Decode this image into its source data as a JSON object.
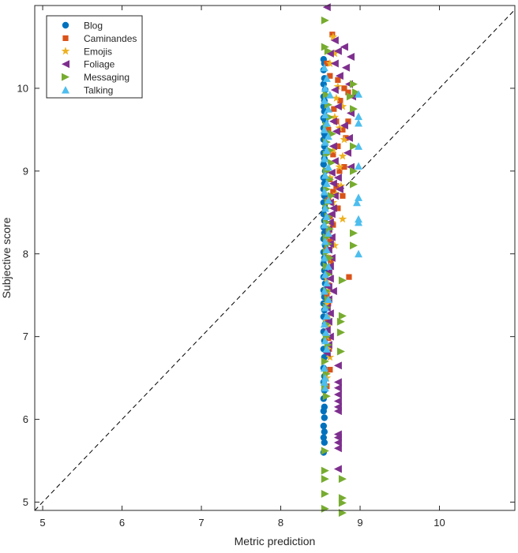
{
  "chart_data": {
    "type": "scatter",
    "xlabel": "Metric prediction",
    "ylabel": "Subjective score",
    "xlim": [
      4.9,
      10.95
    ],
    "ylim": [
      4.9,
      11.0
    ],
    "x_ticks": [
      5,
      6,
      7,
      8,
      9,
      10
    ],
    "y_ticks": [
      5,
      6,
      7,
      8,
      9,
      10
    ],
    "grid": false,
    "legend_position": "top-left",
    "reference_line": {
      "style": "dashed",
      "color": "#000000",
      "from": [
        4.9,
        4.9
      ],
      "to": [
        10.95,
        10.95
      ]
    },
    "series": [
      {
        "name": "Blog",
        "marker": "circle",
        "color": "#0072BD",
        "points": [
          [
            8.54,
            10.35
          ],
          [
            8.55,
            10.3
          ],
          [
            8.54,
            10.22
          ],
          [
            8.55,
            10.12
          ],
          [
            8.54,
            10.05
          ],
          [
            8.56,
            9.98
          ],
          [
            8.54,
            9.9
          ],
          [
            8.55,
            9.85
          ],
          [
            8.54,
            9.78
          ],
          [
            8.55,
            9.72
          ],
          [
            8.54,
            9.64
          ],
          [
            8.56,
            9.6
          ],
          [
            8.54,
            9.52
          ],
          [
            8.55,
            9.45
          ],
          [
            8.54,
            9.38
          ],
          [
            8.55,
            9.3
          ],
          [
            8.54,
            9.22
          ],
          [
            8.55,
            9.15
          ],
          [
            8.54,
            9.08
          ],
          [
            8.56,
            9.0
          ],
          [
            8.54,
            8.92
          ],
          [
            8.55,
            8.85
          ],
          [
            8.54,
            8.78
          ],
          [
            8.55,
            8.7
          ],
          [
            8.54,
            8.62
          ],
          [
            8.56,
            8.55
          ],
          [
            8.54,
            8.48
          ],
          [
            8.55,
            8.4
          ],
          [
            8.54,
            8.32
          ],
          [
            8.55,
            8.25
          ],
          [
            8.54,
            8.18
          ],
          [
            8.56,
            8.1
          ],
          [
            8.54,
            8.02
          ],
          [
            8.55,
            7.95
          ],
          [
            8.54,
            7.88
          ],
          [
            8.55,
            7.8
          ],
          [
            8.54,
            7.72
          ],
          [
            8.56,
            7.64
          ],
          [
            8.54,
            7.56
          ],
          [
            8.55,
            7.48
          ],
          [
            8.54,
            7.4
          ],
          [
            8.55,
            7.32
          ],
          [
            8.54,
            7.24
          ],
          [
            8.56,
            7.15
          ],
          [
            8.54,
            7.06
          ],
          [
            8.55,
            6.95
          ],
          [
            8.54,
            6.85
          ],
          [
            8.55,
            6.75
          ],
          [
            8.54,
            6.62
          ],
          [
            8.55,
            6.52
          ],
          [
            8.54,
            6.45
          ],
          [
            8.55,
            6.35
          ],
          [
            8.54,
            6.25
          ],
          [
            8.55,
            6.15
          ],
          [
            8.54,
            6.1
          ],
          [
            8.55,
            6.02
          ],
          [
            8.54,
            5.92
          ],
          [
            8.55,
            5.85
          ],
          [
            8.54,
            5.78
          ],
          [
            8.55,
            5.72
          ],
          [
            8.54,
            5.6
          ]
        ]
      },
      {
        "name": "Caminandes",
        "marker": "square",
        "color": "#D95319",
        "points": [
          [
            8.65,
            10.65
          ],
          [
            8.58,
            10.3
          ],
          [
            8.62,
            10.15
          ],
          [
            8.72,
            10.1
          ],
          [
            8.8,
            10.0
          ],
          [
            8.85,
            9.95
          ],
          [
            8.75,
            9.85
          ],
          [
            8.67,
            9.75
          ],
          [
            8.7,
            9.6
          ],
          [
            8.85,
            9.6
          ],
          [
            8.6,
            9.5
          ],
          [
            8.78,
            9.5
          ],
          [
            8.82,
            9.4
          ],
          [
            8.72,
            9.3
          ],
          [
            8.66,
            9.2
          ],
          [
            8.8,
            9.05
          ],
          [
            8.74,
            9.0
          ],
          [
            8.62,
            8.9
          ],
          [
            8.7,
            8.82
          ],
          [
            8.66,
            8.75
          ],
          [
            8.78,
            8.7
          ],
          [
            8.6,
            8.65
          ],
          [
            8.72,
            8.55
          ],
          [
            8.62,
            8.45
          ],
          [
            8.66,
            8.35
          ],
          [
            8.6,
            8.25
          ],
          [
            8.62,
            8.15
          ],
          [
            8.58,
            8.05
          ],
          [
            8.6,
            7.95
          ],
          [
            8.63,
            7.9
          ],
          [
            8.86,
            7.72
          ],
          [
            8.6,
            7.62
          ],
          [
            8.58,
            7.5
          ],
          [
            8.6,
            7.4
          ],
          [
            8.59,
            7.2
          ],
          [
            8.6,
            6.98
          ],
          [
            8.61,
            6.85
          ],
          [
            8.62,
            6.6
          ],
          [
            8.58,
            6.4
          ]
        ]
      },
      {
        "name": "Emojis",
        "marker": "star",
        "color": "#EDB120",
        "points": [
          [
            8.66,
            10.62
          ],
          [
            8.68,
            10.42
          ],
          [
            8.62,
            10.3
          ],
          [
            8.72,
            10.02
          ],
          [
            8.7,
            9.88
          ],
          [
            8.78,
            9.78
          ],
          [
            8.68,
            9.65
          ],
          [
            8.74,
            9.52
          ],
          [
            8.8,
            9.38
          ],
          [
            8.66,
            9.25
          ],
          [
            8.78,
            9.18
          ],
          [
            8.74,
            9.05
          ],
          [
            8.62,
            8.92
          ],
          [
            8.76,
            8.82
          ],
          [
            8.7,
            8.72
          ],
          [
            8.66,
            8.62
          ],
          [
            8.78,
            8.42
          ],
          [
            8.64,
            8.38
          ],
          [
            8.6,
            8.3
          ],
          [
            8.68,
            8.1
          ],
          [
            8.6,
            7.95
          ],
          [
            8.62,
            7.85
          ],
          [
            8.58,
            7.7
          ],
          [
            8.6,
            7.55
          ],
          [
            8.58,
            7.4
          ],
          [
            8.6,
            7.25
          ],
          [
            8.59,
            7.12
          ],
          [
            8.58,
            7.0
          ],
          [
            8.6,
            6.85
          ],
          [
            8.62,
            6.75
          ],
          [
            8.58,
            6.5
          ]
        ]
      },
      {
        "name": "Foliage",
        "marker": "triangle-left",
        "color": "#7E2F8E",
        "points": [
          [
            8.58,
            10.98
          ],
          [
            8.68,
            10.58
          ],
          [
            8.8,
            10.5
          ],
          [
            8.72,
            10.45
          ],
          [
            8.62,
            10.42
          ],
          [
            8.88,
            10.38
          ],
          [
            8.68,
            10.3
          ],
          [
            8.82,
            10.25
          ],
          [
            8.74,
            10.15
          ],
          [
            8.86,
            10.05
          ],
          [
            8.68,
            9.98
          ],
          [
            8.9,
            9.9
          ],
          [
            8.72,
            9.78
          ],
          [
            8.88,
            9.7
          ],
          [
            8.66,
            9.6
          ],
          [
            8.8,
            9.55
          ],
          [
            8.7,
            9.48
          ],
          [
            8.86,
            9.4
          ],
          [
            8.66,
            9.3
          ],
          [
            8.84,
            9.22
          ],
          [
            8.68,
            9.12
          ],
          [
            8.88,
            9.05
          ],
          [
            8.64,
            8.98
          ],
          [
            8.72,
            8.92
          ],
          [
            8.66,
            8.85
          ],
          [
            8.74,
            8.78
          ],
          [
            8.68,
            8.7
          ],
          [
            8.62,
            8.62
          ],
          [
            8.66,
            8.55
          ],
          [
            8.64,
            8.48
          ],
          [
            8.62,
            8.38
          ],
          [
            8.6,
            8.3
          ],
          [
            8.64,
            8.2
          ],
          [
            8.62,
            8.12
          ],
          [
            8.6,
            8.05
          ],
          [
            8.64,
            7.95
          ],
          [
            8.62,
            7.85
          ],
          [
            8.6,
            7.78
          ],
          [
            8.62,
            7.7
          ],
          [
            8.6,
            7.6
          ],
          [
            8.66,
            7.55
          ],
          [
            8.6,
            7.45
          ],
          [
            8.58,
            7.35
          ],
          [
            8.62,
            7.28
          ],
          [
            8.6,
            7.18
          ],
          [
            8.58,
            7.08
          ],
          [
            8.62,
            7.0
          ],
          [
            8.6,
            6.9
          ],
          [
            8.58,
            6.8
          ],
          [
            8.72,
            6.65
          ],
          [
            8.72,
            6.45
          ],
          [
            8.72,
            6.38
          ],
          [
            8.72,
            6.3
          ],
          [
            8.72,
            6.22
          ],
          [
            8.72,
            6.15
          ],
          [
            8.72,
            6.1
          ],
          [
            8.72,
            5.82
          ],
          [
            8.72,
            5.78
          ],
          [
            8.72,
            5.72
          ],
          [
            8.72,
            5.65
          ],
          [
            8.72,
            5.4
          ]
        ]
      },
      {
        "name": "Messaging",
        "marker": "triangle-right",
        "color": "#77AC30",
        "points": [
          [
            8.56,
            10.82
          ],
          [
            8.56,
            10.5
          ],
          [
            8.6,
            10.45
          ],
          [
            8.92,
            10.05
          ],
          [
            8.95,
            9.95
          ],
          [
            8.58,
            9.92
          ],
          [
            8.88,
            9.9
          ],
          [
            8.6,
            9.8
          ],
          [
            8.92,
            9.75
          ],
          [
            8.62,
            9.65
          ],
          [
            8.58,
            9.55
          ],
          [
            8.65,
            9.45
          ],
          [
            8.58,
            9.35
          ],
          [
            8.92,
            9.3
          ],
          [
            8.62,
            9.25
          ],
          [
            8.58,
            9.2
          ],
          [
            8.64,
            9.1
          ],
          [
            8.58,
            9.0
          ],
          [
            8.92,
            9.0
          ],
          [
            8.62,
            8.9
          ],
          [
            8.92,
            8.84
          ],
          [
            8.58,
            8.78
          ],
          [
            8.64,
            8.7
          ],
          [
            8.6,
            8.62
          ],
          [
            8.58,
            8.55
          ],
          [
            8.6,
            8.45
          ],
          [
            8.58,
            8.38
          ],
          [
            8.62,
            8.3
          ],
          [
            8.92,
            8.25
          ],
          [
            8.58,
            8.2
          ],
          [
            8.6,
            8.12
          ],
          [
            8.92,
            8.1
          ],
          [
            8.58,
            8.02
          ],
          [
            8.62,
            7.95
          ],
          [
            8.58,
            7.85
          ],
          [
            8.6,
            7.75
          ],
          [
            8.78,
            7.68
          ],
          [
            8.58,
            7.55
          ],
          [
            8.6,
            7.45
          ],
          [
            8.58,
            7.35
          ],
          [
            8.78,
            7.25
          ],
          [
            8.76,
            7.18
          ],
          [
            8.58,
            7.15
          ],
          [
            8.76,
            7.05
          ],
          [
            8.58,
            7.0
          ],
          [
            8.6,
            6.9
          ],
          [
            8.76,
            6.82
          ],
          [
            8.56,
            6.7
          ],
          [
            8.58,
            6.55
          ],
          [
            8.56,
            6.4
          ],
          [
            8.58,
            6.28
          ],
          [
            8.56,
            5.62
          ],
          [
            8.56,
            5.38
          ],
          [
            8.56,
            5.28
          ],
          [
            8.78,
            5.28
          ],
          [
            8.56,
            5.1
          ],
          [
            8.78,
            5.05
          ],
          [
            8.78,
            4.99
          ],
          [
            8.56,
            4.92
          ],
          [
            8.78,
            4.87
          ]
        ]
      },
      {
        "name": "Talking",
        "marker": "triangle-up",
        "color": "#4DBEEE",
        "points": [
          [
            8.55,
            10.25
          ],
          [
            8.58,
            10.12
          ],
          [
            8.56,
            10.0
          ],
          [
            8.62,
            9.92
          ],
          [
            8.98,
            9.93
          ],
          [
            8.55,
            9.85
          ],
          [
            8.6,
            9.75
          ],
          [
            8.56,
            9.68
          ],
          [
            8.98,
            9.66
          ],
          [
            8.58,
            9.58
          ],
          [
            8.98,
            9.58
          ],
          [
            8.55,
            9.5
          ],
          [
            8.6,
            9.42
          ],
          [
            8.56,
            9.35
          ],
          [
            8.98,
            9.3
          ],
          [
            8.58,
            9.25
          ],
          [
            8.55,
            9.15
          ],
          [
            8.98,
            9.06
          ],
          [
            8.6,
            9.05
          ],
          [
            8.56,
            8.95
          ],
          [
            8.58,
            8.85
          ],
          [
            8.55,
            8.75
          ],
          [
            8.98,
            8.68
          ],
          [
            8.96,
            8.62
          ],
          [
            8.6,
            8.65
          ],
          [
            8.56,
            8.55
          ],
          [
            8.58,
            8.45
          ],
          [
            8.98,
            8.42
          ],
          [
            8.98,
            8.38
          ],
          [
            8.55,
            8.35
          ],
          [
            8.6,
            8.25
          ],
          [
            8.56,
            8.15
          ],
          [
            8.58,
            8.05
          ],
          [
            8.98,
            8.0
          ],
          [
            8.55,
            7.95
          ],
          [
            8.6,
            7.85
          ],
          [
            8.56,
            7.75
          ],
          [
            8.58,
            7.65
          ],
          [
            8.55,
            7.55
          ],
          [
            8.6,
            7.45
          ],
          [
            8.56,
            7.35
          ],
          [
            8.58,
            7.25
          ],
          [
            8.55,
            7.15
          ],
          [
            8.57,
            7.05
          ],
          [
            8.56,
            6.95
          ],
          [
            8.58,
            6.85
          ],
          [
            8.55,
            6.62
          ],
          [
            8.56,
            6.5
          ],
          [
            8.55,
            6.45
          ],
          [
            8.56,
            6.38
          ]
        ]
      }
    ]
  }
}
